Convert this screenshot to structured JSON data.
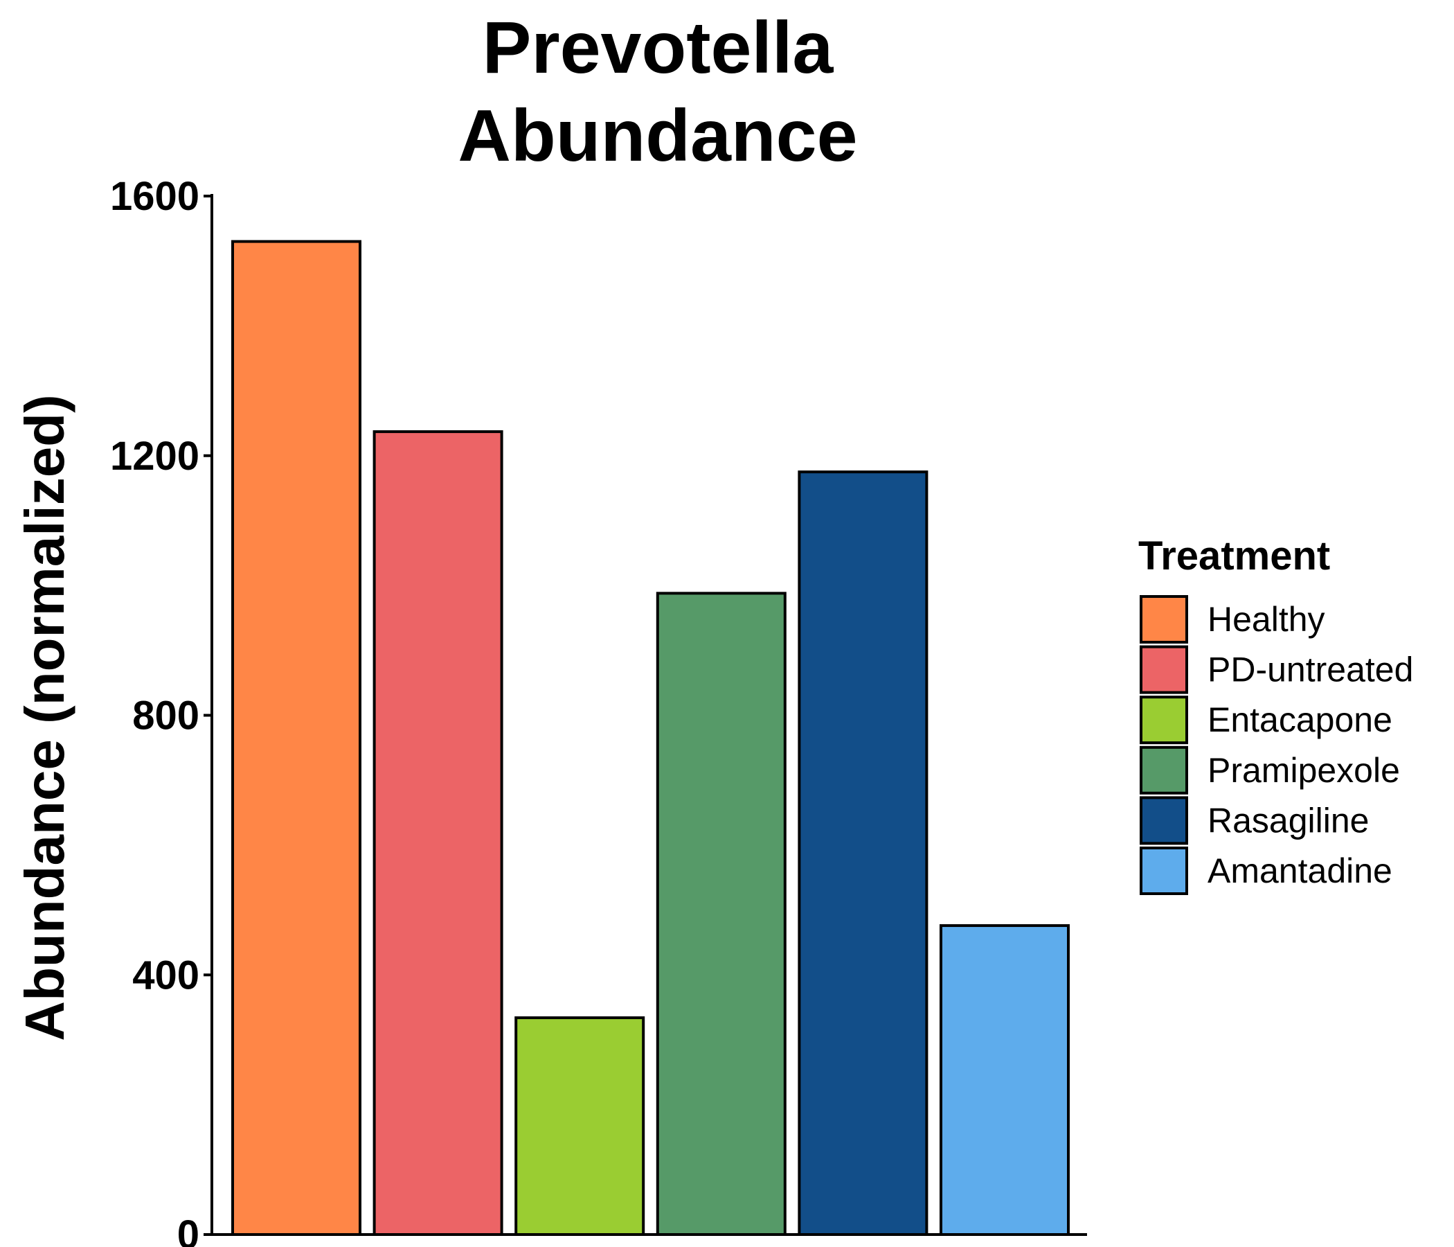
{
  "chart_data": {
    "type": "bar",
    "title": "Prevotella Abundance",
    "title_lines": [
      "Prevotella",
      "Abundance"
    ],
    "xlabel": "",
    "ylabel": "Abundance (normalized)",
    "ylim": [
      0,
      1600
    ],
    "yticks": [
      0,
      400,
      800,
      1200,
      1600
    ],
    "ytick_labels": [
      "0",
      "400",
      "800",
      "1200",
      "1600"
    ],
    "categories": [
      "Healthy",
      "PD-untreated",
      "Entacapone",
      "Pramipexole",
      "Rasagiline",
      "Amantadine"
    ],
    "values": [
      1530,
      1237,
      334,
      988,
      1175,
      476
    ],
    "colors": [
      "#ff8647",
      "#ec6466",
      "#9acd32",
      "#569a68",
      "#124e89",
      "#5eacec"
    ],
    "grid": false,
    "legend": {
      "title": "Treatment",
      "placement": "right",
      "labels": [
        "Healthy",
        "PD-untreated",
        "Entacapone",
        "Pramipexole",
        "Rasagiline",
        "Amantadine"
      ]
    }
  }
}
